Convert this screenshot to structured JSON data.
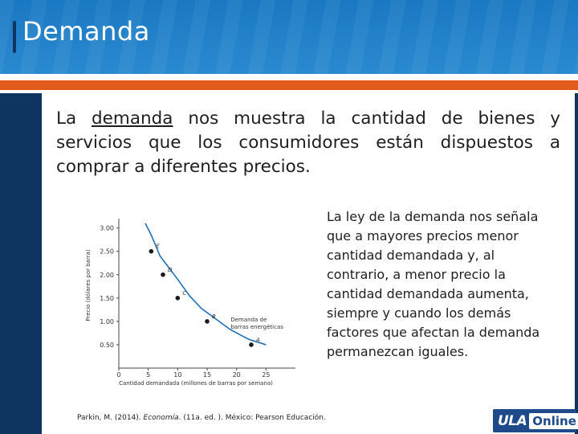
{
  "slide": {
    "title": "Demanda",
    "intro_prefix": "La ",
    "intro_underlined": "demanda",
    "intro_rest": " nos muestra la cantidad de bienes y servicios que los consumidores están dispuestos a comprar a diferentes precios.",
    "side_text": "La ley de la demanda nos señala que a mayores precios menor cantidad demandada y, al contrario, a menor precio la cantidad  demandada aumenta, siempre y cuando los demás factores que afectan la demanda permanezcan iguales.",
    "citation_prefix": "Parkin, M. (2014). ",
    "citation_italic": "Economía",
    "citation_rest": ". (11a. ed. ). México: Pearson Educación."
  },
  "logo": {
    "part1": "ULA",
    "part2": "Online",
    "color": "#1e4a8a"
  },
  "colors": {
    "header": "#1a78c2",
    "sidebar": "#0e3560",
    "orange": "#e25a1c",
    "curve": "#1c6fb8"
  },
  "chart_data": {
    "type": "line",
    "ylabel": "Precio (dólares por barra)",
    "xlabel": "Cantidad demandada (millones de barras por semana)",
    "xlim": [
      0,
      30
    ],
    "ylim": [
      0,
      3.2
    ],
    "xticks": [
      "0",
      "5",
      "10",
      "15",
      "20",
      "25"
    ],
    "xtick_values": [
      0,
      5,
      10,
      15,
      20,
      25
    ],
    "yticks": [
      "0.50",
      "1.00",
      "1.50",
      "2.00",
      "2.50",
      "3.00"
    ],
    "ytick_values": [
      0.5,
      1.0,
      1.5,
      2.0,
      2.5,
      3.0
    ],
    "curve": {
      "x": [
        4.5,
        5.5,
        7,
        8.5,
        10,
        12,
        14,
        16.5,
        19,
        22,
        25
      ],
      "y": [
        3.1,
        2.85,
        2.4,
        2.15,
        1.9,
        1.55,
        1.28,
        1.05,
        0.82,
        0.62,
        0.5
      ]
    },
    "points": [
      {
        "label": "E",
        "x": 5.5,
        "y": 2.5
      },
      {
        "label": "D",
        "x": 7.5,
        "y": 2.0
      },
      {
        "label": "C",
        "x": 10,
        "y": 1.5
      },
      {
        "label": "B",
        "x": 15,
        "y": 1.0
      },
      {
        "label": "A",
        "x": 22.5,
        "y": 0.5
      }
    ],
    "annotation": [
      "Demanda de",
      "barras energéticas"
    ]
  }
}
